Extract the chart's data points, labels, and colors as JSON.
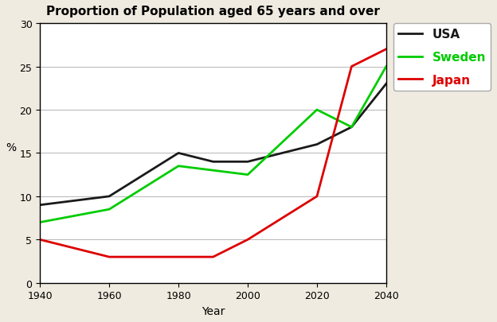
{
  "title": "Proportion of Population aged 65 years and over",
  "xlabel": "Year",
  "ylabel": "%",
  "years": [
    1940,
    1960,
    1980,
    1990,
    2000,
    2020,
    2030,
    2040
  ],
  "usa": [
    9,
    10,
    15,
    14,
    14,
    16,
    18,
    23
  ],
  "sweden": [
    7,
    8.5,
    13.5,
    13,
    12.5,
    20,
    18,
    25
  ],
  "japan": [
    5,
    3,
    3,
    3,
    5,
    10,
    25,
    27
  ],
  "usa_color": "#1a1a1a",
  "sweden_color": "#00cc00",
  "japan_color": "#dd0000",
  "ylim": [
    0,
    30
  ],
  "xlim": [
    1940,
    2040
  ],
  "yticks": [
    0,
    5,
    10,
    15,
    20,
    25,
    30
  ],
  "xticks": [
    1940,
    1960,
    1980,
    2000,
    2020,
    2040
  ],
  "figure_bg": "#f0ebe0",
  "plot_bg": "#ffffff",
  "legend_labels": [
    "USA",
    "Sweden",
    "Japan"
  ],
  "legend_text_colors": [
    "#1a1a1a",
    "#00cc00",
    "#dd0000"
  ],
  "linewidth": 2.0,
  "title_fontsize": 11,
  "tick_fontsize": 9,
  "label_fontsize": 10,
  "legend_fontsize": 11
}
